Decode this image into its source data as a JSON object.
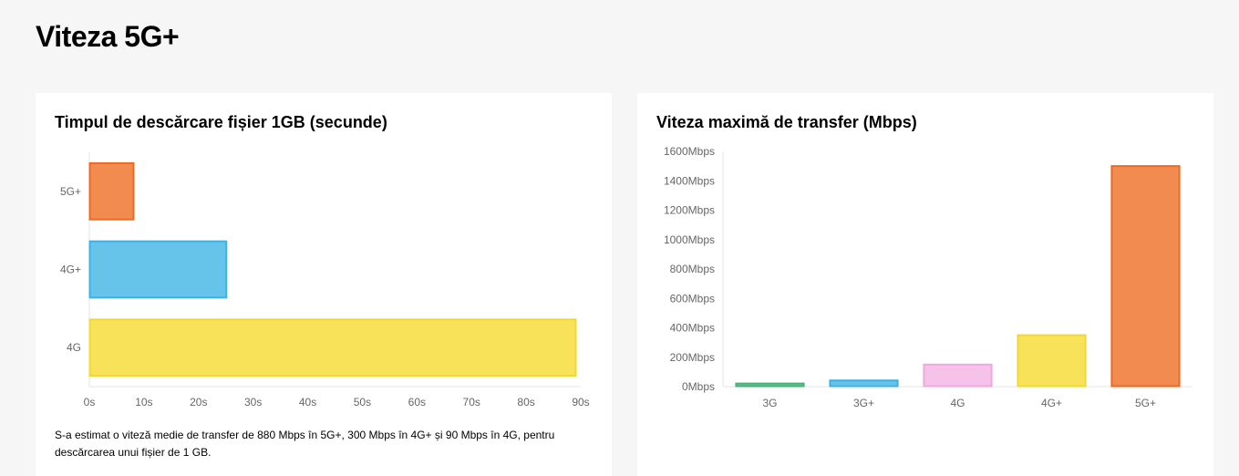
{
  "page": {
    "title": "Viteza 5G+"
  },
  "download_card": {
    "title": "Timpul de descărcare fișier 1GB (secunde)",
    "note": "S-a estimat o viteză medie de transfer de 880 Mbps în 5G+, 300 Mbps în 4G+ și 90 Mbps în 4G, pentru descărcarea unui fișier de 1 GB."
  },
  "speed_card": {
    "title": "Viteza maximă de transfer (Mbps)"
  },
  "chart_data": [
    {
      "type": "bar",
      "orientation": "horizontal",
      "title": "Timpul de descărcare fișier 1GB (secunde)",
      "categories": [
        "5G+",
        "4G+",
        "4G"
      ],
      "values": [
        8,
        25,
        89
      ],
      "colors": [
        "#f28b50",
        "#66c3ea",
        "#f7e25a"
      ],
      "borders": [
        "#ec6a22",
        "#3fb0e2",
        "#f2d92f"
      ],
      "xlim": [
        0,
        90
      ],
      "ticks": [
        0,
        10,
        20,
        30,
        40,
        50,
        60,
        70,
        80,
        90
      ],
      "tick_suffix": "s",
      "grid": false
    },
    {
      "type": "bar",
      "orientation": "vertical",
      "title": "Viteza maximă de transfer (Mbps)",
      "categories": [
        "3G",
        "3G+",
        "4G",
        "4G+",
        "5G+"
      ],
      "values": [
        21,
        42,
        150,
        350,
        1500
      ],
      "colors": [
        "#6ec49a",
        "#66c3ea",
        "#f6c2ea",
        "#f7e25a",
        "#f28b50"
      ],
      "borders": [
        "#45b07a",
        "#3fb0e2",
        "#efa8df",
        "#f2d92f",
        "#ec6a22"
      ],
      "ylim": [
        0,
        1600
      ],
      "ticks": [
        0,
        200,
        400,
        600,
        800,
        1000,
        1200,
        1400,
        1600
      ],
      "tick_suffix": "Mbps",
      "grid": false
    }
  ]
}
